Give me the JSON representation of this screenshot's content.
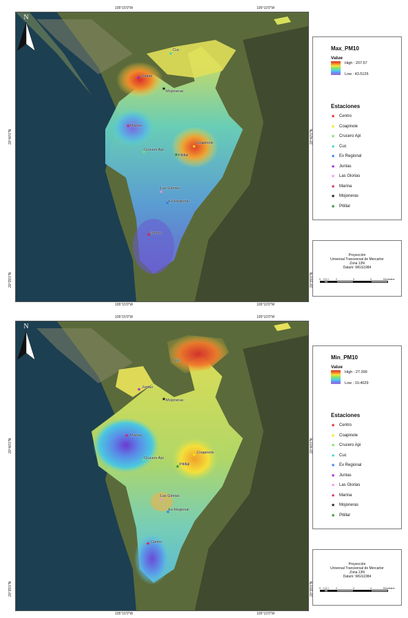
{
  "coords": {
    "top_x_left": "105°15'0\"W",
    "top_x_right": "105°10'0\"W",
    "y_mid": "20°40'0\"N",
    "y_bottom": "20°35'0\"N"
  },
  "maps": [
    {
      "legend_title": "Max_PM10",
      "value_label": "Value",
      "high": "High : 207.57",
      "low": "Low : 43.5126",
      "stations_title": "Estaciones"
    },
    {
      "legend_title": "Min_PM10",
      "value_label": "Value",
      "high": "High : 27.399",
      "low": "Low : 10.4029",
      "stations_title": "Estaciones"
    }
  ],
  "stations": [
    {
      "name": "Centro",
      "color": "#e02020"
    },
    {
      "name": "Coapinole",
      "color": "#f2e81a"
    },
    {
      "name": "Crucero Api",
      "color": "#7ee060"
    },
    {
      "name": "Cuc",
      "color": "#34d6c8"
    },
    {
      "name": "Ex Regional",
      "color": "#2d7ae8"
    },
    {
      "name": "Juntas",
      "color": "#a21ad6"
    },
    {
      "name": "Las Glorias",
      "color": "#f090e0"
    },
    {
      "name": "Marina",
      "color": "#d0206a"
    },
    {
      "name": "Mojoneras",
      "color": "#111111"
    },
    {
      "name": "Pitillal",
      "color": "#2a8a2a"
    }
  ],
  "map_labels": [
    "Cuc",
    "Juntas",
    "Mojoneras",
    "Marina",
    "Coapinole",
    "Crucero Api",
    "Pitillal",
    "Las Glorias",
    "Ex Regional",
    "Centro"
  ],
  "projection": {
    "line1": "Proyección",
    "line2": "Universal Transversal de Mercartor",
    "line3": "Zona 13N",
    "line4": "Datum: WGS1984"
  },
  "scale": {
    "ticks": [
      "0",
      "0.5",
      "1",
      "2",
      "3",
      "4"
    ],
    "unit": "Kilometers"
  },
  "north_label": "N",
  "colors": {
    "ocean": "#1c3f52",
    "land": "#5b6a3a",
    "mountain": "#3f4a2e"
  }
}
